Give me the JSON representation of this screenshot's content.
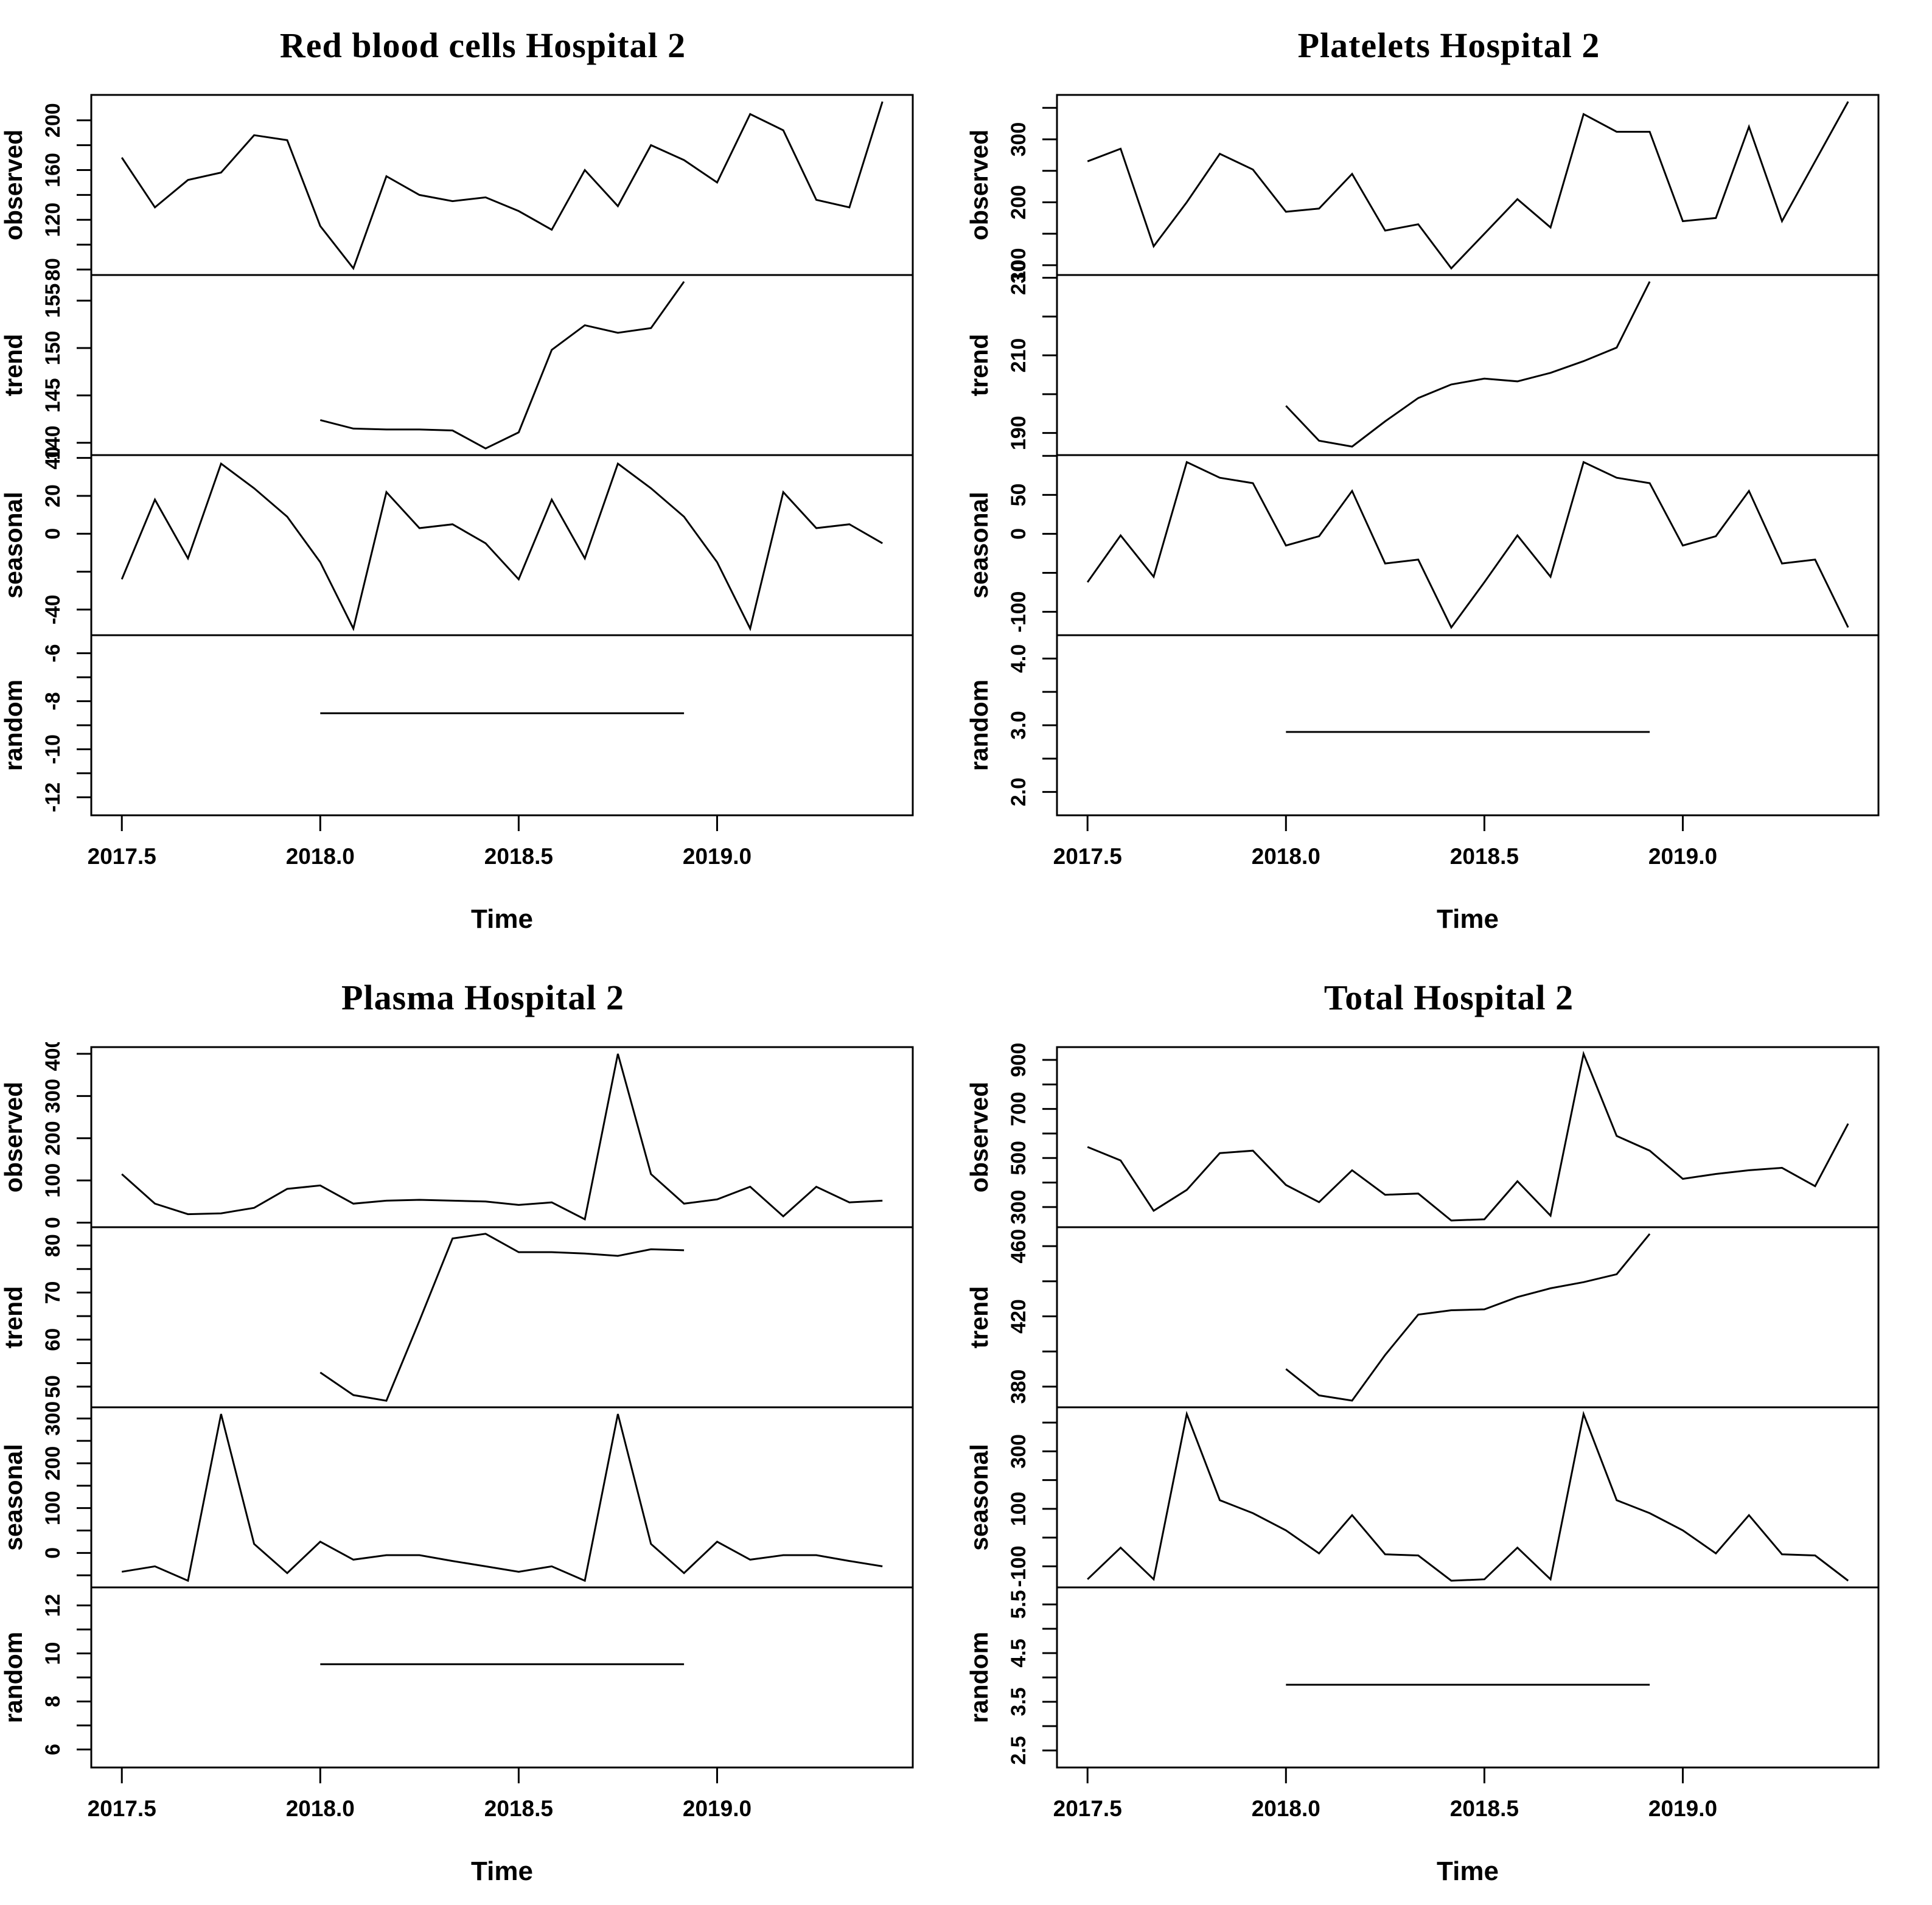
{
  "figure_name": "Time series decomposition panels, Hospital 2",
  "x_axis": {
    "label": "Time",
    "domain": [
      2017.423,
      2019.493
    ],
    "ticks": [
      {
        "v": 2017.5,
        "t": "2017.5"
      },
      {
        "v": 2018.0,
        "t": "2018.0"
      },
      {
        "v": 2018.5,
        "t": "2018.5"
      },
      {
        "v": 2019.0,
        "t": "2019.0"
      }
    ],
    "interval": 0.0833333
  },
  "chart_data": [
    {
      "type": "line",
      "title": "Red blood cells Hospital 2",
      "xlabel": "Time",
      "panels": [
        {
          "label": "observed",
          "start": 2017.5,
          "ylim": [
            75.6,
            220.4
          ],
          "tick_marks": [
            80,
            100,
            120,
            140,
            160,
            180,
            200
          ],
          "tick_labels": [
            {
              "v": 80,
              "t": "80"
            },
            {
              "v": 120,
              "t": "120"
            },
            {
              "v": 160,
              "t": "160"
            },
            {
              "v": 200,
              "t": "200"
            }
          ],
          "values": [
            170,
            130,
            152,
            158,
            188,
            184,
            115,
            81,
            155,
            140,
            135,
            138,
            127,
            112,
            160,
            131,
            180,
            168,
            150,
            205,
            192,
            136,
            130,
            215
          ]
        },
        {
          "label": "trend",
          "start": 2018.0,
          "ylim": [
            138.7,
            157.7
          ],
          "tick_marks": [
            140,
            145,
            150,
            155
          ],
          "tick_labels": [
            {
              "v": 140,
              "t": "140"
            },
            {
              "v": 145,
              "t": "145"
            },
            {
              "v": 150,
              "t": "150"
            },
            {
              "v": 155,
              "t": "155"
            }
          ],
          "values": [
            142.4,
            141.5,
            141.4,
            141.4,
            141.3,
            139.4,
            141.1,
            149.8,
            152.4,
            151.6,
            152.1,
            157
          ]
        },
        {
          "label": "seasonal",
          "start": 2017.5,
          "ylim": [
            -53.5,
            41.5
          ],
          "tick_marks": [
            -40,
            -20,
            0,
            20,
            40
          ],
          "tick_labels": [
            {
              "v": -40,
              "t": "-40"
            },
            {
              "v": 0,
              "t": "0"
            },
            {
              "v": 20,
              "t": "20"
            },
            {
              "v": 40,
              "t": "40"
            }
          ],
          "values": [
            -24,
            18,
            -13,
            37,
            24,
            9,
            -15,
            -50,
            22,
            3,
            5,
            -5,
            -24,
            18,
            -13,
            37,
            24,
            9,
            -15,
            -50,
            22,
            3,
            5,
            -5
          ]
        },
        {
          "label": "random",
          "start": 2018.0,
          "ylim": [
            -12.75,
            -5.25
          ],
          "tick_marks": [
            -12,
            -11,
            -10,
            -9,
            -8,
            -7,
            -6
          ],
          "tick_labels": [
            {
              "v": -12,
              "t": "-12"
            },
            {
              "v": -10,
              "t": "-10"
            },
            {
              "v": -8,
              "t": "-8"
            },
            {
              "v": -6,
              "t": "-6"
            }
          ],
          "values": [
            -8.5,
            -8.5,
            -8.5,
            -8.5,
            -8.5,
            -8.5,
            -8.5,
            -8.5,
            -8.5,
            -8.5,
            -8.5,
            -8.5
          ]
        }
      ]
    },
    {
      "type": "line",
      "title": "Platelets Hospital 2",
      "xlabel": "Time",
      "panels": [
        {
          "label": "observed",
          "start": 2017.5,
          "ylim": [
            84.4,
            370.6
          ],
          "tick_marks": [
            100,
            150,
            200,
            250,
            300,
            350
          ],
          "tick_labels": [
            {
              "v": 100,
              "t": "100"
            },
            {
              "v": 200,
              "t": "200"
            },
            {
              "v": 300,
              "t": "300"
            }
          ],
          "values": [
            265,
            285,
            130,
            200,
            277,
            252,
            185,
            190,
            245,
            155,
            165,
            95,
            150,
            205,
            160,
            340,
            312,
            312,
            170,
            175,
            320,
            170,
            265,
            360
          ]
        },
        {
          "label": "trend",
          "start": 2018.0,
          "ylim": [
            184.3,
            230.7
          ],
          "tick_marks": [
            190,
            200,
            210,
            220,
            230
          ],
          "tick_labels": [
            {
              "v": 190,
              "t": "190"
            },
            {
              "v": 210,
              "t": "210"
            },
            {
              "v": 230,
              "t": "230"
            }
          ],
          "values": [
            197,
            188,
            186.5,
            193,
            199,
            202.5,
            204,
            203.3,
            205.5,
            208.5,
            212,
            229
          ]
        },
        {
          "label": "seasonal",
          "start": 2017.5,
          "ylim": [
            -130,
            101
          ],
          "tick_marks": [
            -100,
            -50,
            0,
            50,
            100
          ],
          "tick_labels": [
            {
              "v": -100,
              "t": "-100"
            },
            {
              "v": 0,
              "t": "0"
            },
            {
              "v": 50,
              "t": "50"
            }
          ],
          "values": [
            -62,
            -2,
            -55,
            92,
            72,
            65,
            -15,
            -3,
            55,
            -38,
            -33,
            -120,
            -62,
            -2,
            -55,
            92,
            72,
            65,
            -15,
            -3,
            55,
            -38,
            -33,
            -120
          ]
        },
        {
          "label": "random",
          "start": 2018.0,
          "ylim": [
            1.65,
            4.35
          ],
          "tick_marks": [
            2,
            2.5,
            3,
            3.5,
            4
          ],
          "tick_labels": [
            {
              "v": 2,
              "t": "2.0"
            },
            {
              "v": 3,
              "t": "3.0"
            },
            {
              "v": 4,
              "t": "4.0"
            }
          ],
          "values": [
            2.9,
            2.9,
            2.9,
            2.9,
            2.9,
            2.9,
            2.9,
            2.9,
            2.9,
            2.9,
            2.9,
            2.9
          ]
        }
      ]
    },
    {
      "type": "line",
      "title": "Plasma Hospital 2",
      "xlabel": "Time",
      "panels": [
        {
          "label": "observed",
          "start": 2017.5,
          "ylim": [
            -10.8,
            415.8
          ],
          "tick_marks": [
            0,
            100,
            200,
            300,
            400
          ],
          "tick_labels": [
            {
              "v": 0,
              "t": "0"
            },
            {
              "v": 100,
              "t": "100"
            },
            {
              "v": 200,
              "t": "200"
            },
            {
              "v": 300,
              "t": "300"
            },
            {
              "v": 400,
              "t": "400"
            }
          ],
          "values": [
            115,
            45,
            20,
            22,
            35,
            80,
            88,
            45,
            52,
            54,
            52,
            50,
            42,
            48,
            8,
            400,
            115,
            45,
            55,
            85,
            15,
            85,
            48,
            52
          ]
        },
        {
          "label": "trend",
          "start": 2018.0,
          "ylim": [
            45.6,
            83.9
          ],
          "tick_marks": [
            50,
            55,
            60,
            65,
            70,
            75,
            80
          ],
          "tick_labels": [
            {
              "v": 50,
              "t": "50"
            },
            {
              "v": 60,
              "t": "60"
            },
            {
              "v": 70,
              "t": "70"
            },
            {
              "v": 80,
              "t": "80"
            }
          ],
          "values": [
            53,
            48.2,
            47,
            64,
            81.5,
            82.5,
            78.6,
            78.6,
            78.3,
            77.8,
            79.2,
            79
          ]
        },
        {
          "label": "seasonal",
          "start": 2017.5,
          "ylim": [
            -76.9,
            324.9
          ],
          "tick_marks": [
            -50,
            0,
            50,
            100,
            150,
            200,
            250,
            300
          ],
          "tick_labels": [
            {
              "v": 0,
              "t": "0"
            },
            {
              "v": 100,
              "t": "100"
            },
            {
              "v": 200,
              "t": "200"
            },
            {
              "v": 300,
              "t": "300"
            }
          ],
          "values": [
            -42,
            -30,
            -62,
            310,
            20,
            -45,
            25,
            -15,
            -5,
            -5,
            -18,
            -30,
            -42,
            -30,
            -62,
            310,
            20,
            -45,
            25,
            -15,
            -5,
            -5,
            -18,
            -30
          ]
        },
        {
          "label": "random",
          "start": 2018.0,
          "ylim": [
            5.25,
            12.75
          ],
          "tick_marks": [
            6,
            7,
            8,
            9,
            10,
            11,
            12
          ],
          "tick_labels": [
            {
              "v": 6,
              "t": "6"
            },
            {
              "v": 8,
              "t": "8"
            },
            {
              "v": 10,
              "t": "10"
            },
            {
              "v": 12,
              "t": "12"
            }
          ],
          "values": [
            9.55,
            9.55,
            9.55,
            9.55,
            9.55,
            9.55,
            9.55,
            9.55,
            9.55,
            9.55,
            9.55,
            9.55
          ]
        }
      ]
    },
    {
      "type": "line",
      "title": "Total Hospital 2",
      "xlabel": "Time",
      "panels": [
        {
          "label": "observed",
          "start": 2017.5,
          "ylim": [
            217.8,
            952.2
          ],
          "tick_marks": [
            300,
            400,
            500,
            600,
            700,
            800,
            900
          ],
          "tick_labels": [
            {
              "v": 300,
              "t": "300"
            },
            {
              "v": 500,
              "t": "500"
            },
            {
              "v": 700,
              "t": "700"
            },
            {
              "v": 900,
              "t": "900"
            }
          ],
          "values": [
            545,
            490,
            285,
            370,
            520,
            530,
            390,
            320,
            450,
            350,
            355,
            245,
            250,
            405,
            265,
            925,
            590,
            530,
            415,
            435,
            450,
            460,
            385,
            640
          ]
        },
        {
          "label": "trend",
          "start": 2018.0,
          "ylim": [
            368.2,
            470.8
          ],
          "tick_marks": [
            380,
            400,
            420,
            440,
            460
          ],
          "tick_labels": [
            {
              "v": 380,
              "t": "380"
            },
            {
              "v": 420,
              "t": "420"
            },
            {
              "v": 460,
              "t": "460"
            }
          ],
          "values": [
            390,
            375,
            372,
            398,
            421,
            423.5,
            424,
            431,
            436,
            439.5,
            444,
            467
          ]
        },
        {
          "label": "seasonal",
          "start": 2017.5,
          "ylim": [
            -173.2,
            453.2
          ],
          "tick_marks": [
            -100,
            0,
            100,
            200,
            300,
            400
          ],
          "tick_labels": [
            {
              "v": -100,
              "t": "-100"
            },
            {
              "v": 100,
              "t": "100"
            },
            {
              "v": 300,
              "t": "300"
            }
          ],
          "values": [
            -145,
            -35,
            -145,
            430,
            130,
            85,
            25,
            -55,
            78,
            -58,
            -62,
            -150,
            -145,
            -35,
            -145,
            430,
            130,
            85,
            25,
            -55,
            78,
            -58,
            -62,
            -150
          ]
        },
        {
          "label": "random",
          "start": 2018.0,
          "ylim": [
            2.15,
            5.85
          ],
          "tick_marks": [
            2.5,
            3,
            3.5,
            4,
            4.5,
            5,
            5.5
          ],
          "tick_labels": [
            {
              "v": 2.5,
              "t": "2.5"
            },
            {
              "v": 3.5,
              "t": "3.5"
            },
            {
              "v": 4.5,
              "t": "4.5"
            },
            {
              "v": 5.5,
              "t": "5.5"
            }
          ],
          "values": [
            3.85,
            3.85,
            3.85,
            3.85,
            3.85,
            3.85,
            3.85,
            3.85,
            3.85,
            3.85,
            3.85,
            3.85
          ]
        }
      ]
    }
  ]
}
